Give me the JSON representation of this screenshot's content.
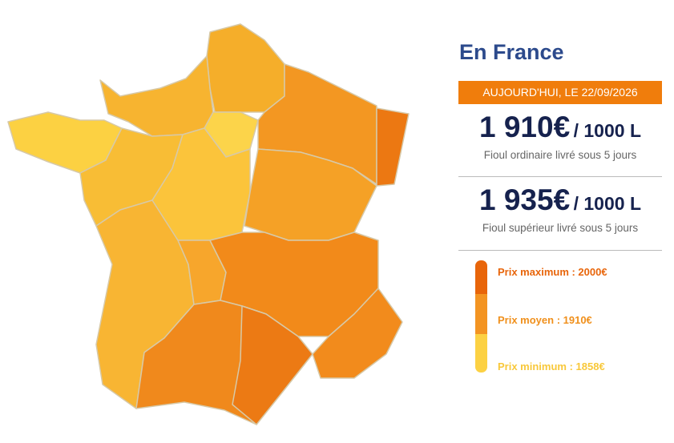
{
  "panel": {
    "title": "En France",
    "date_badge": "AUJOURD'HUI, LE 22/09/2026",
    "prices": [
      {
        "amount": "1 910€",
        "unit": "/ 1000 L",
        "description": "Fioul ordinaire livré sous 5 jours"
      },
      {
        "amount": "1 935€",
        "unit": "/ 1000 L",
        "description": "Fioul supérieur livré sous 5 jours"
      }
    ],
    "legend": [
      "Prix maximum : 2000€",
      "Prix moyen : 1910€",
      "Prix minimum : 1858€"
    ]
  }
}
